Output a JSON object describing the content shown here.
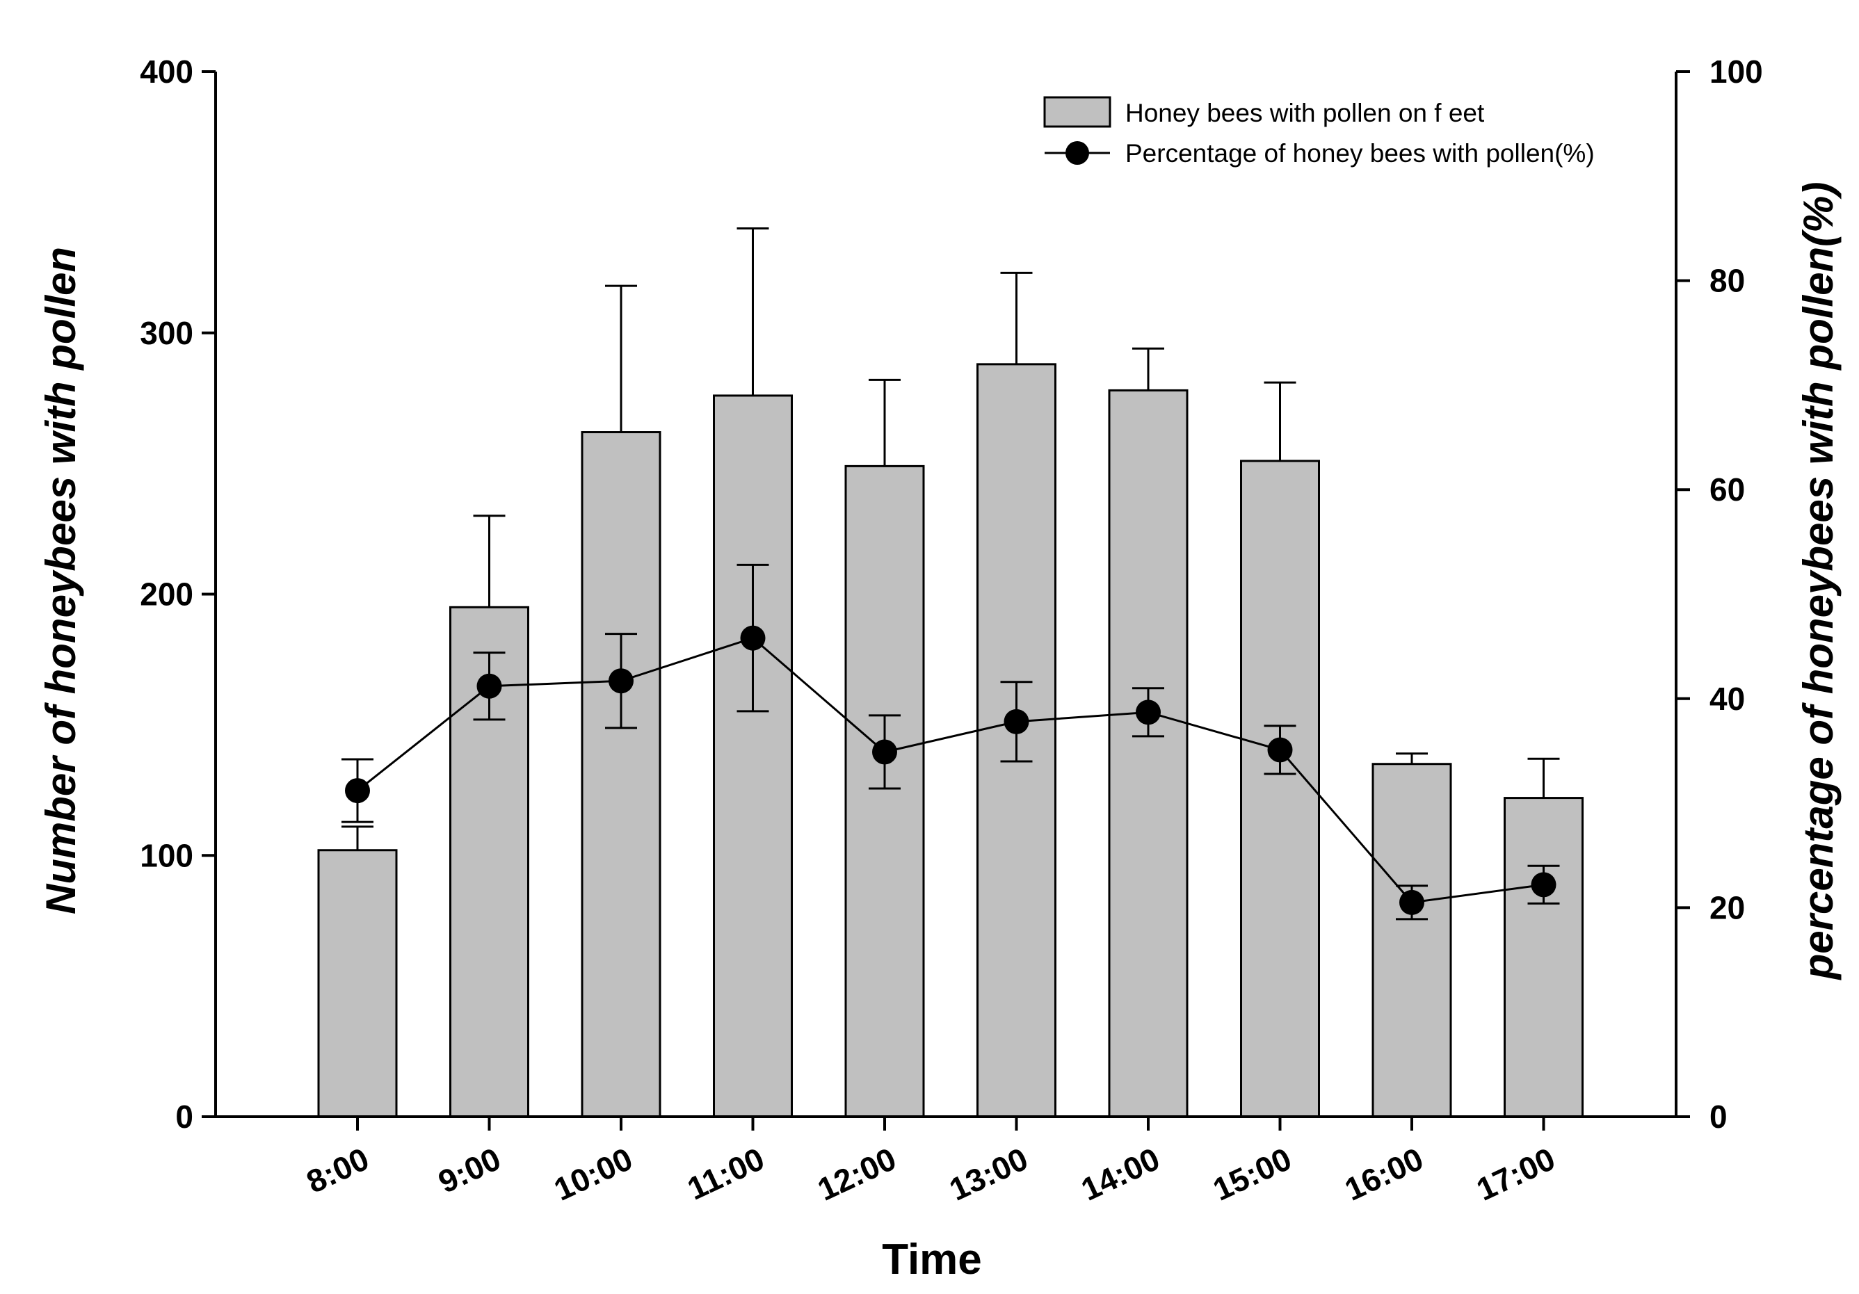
{
  "chart_data": {
    "type": "bar+line",
    "categories": [
      "8:00",
      "9:00",
      "10:00",
      "11:00",
      "12:00",
      "13:00",
      "14:00",
      "15:00",
      "16:00",
      "17:00"
    ],
    "xlabel": "Time",
    "ylabel_left": "Number of honeybees with pollen",
    "ylabel_right": "percentage of honeybees with pollen(%)",
    "ylim_left": [
      0,
      400
    ],
    "yticks_left": [
      0,
      100,
      200,
      300,
      400
    ],
    "ylim_right": [
      0,
      100
    ],
    "yticks_right": [
      0,
      20,
      40,
      60,
      80,
      100
    ],
    "grid": false,
    "legend_position": "top-right",
    "series": [
      {
        "name": "Honey bees with pollen on f eet",
        "type": "bar",
        "axis": "left",
        "color": "#c0c0c0",
        "values": [
          102,
          195,
          262,
          276,
          249,
          288,
          278,
          251,
          135,
          122
        ],
        "errors": [
          9,
          35,
          56,
          64,
          33,
          35,
          16,
          30,
          4,
          15
        ]
      },
      {
        "name": "Percentage of  honey bees with pollen(%)",
        "type": "line",
        "axis": "right",
        "color": "#000000",
        "values": [
          31.2,
          41.2,
          41.7,
          45.8,
          34.9,
          37.8,
          38.7,
          35.1,
          20.5,
          22.2
        ],
        "errors": [
          3,
          3.2,
          4.5,
          7,
          3.5,
          3.8,
          2.3,
          2.3,
          1.6,
          1.8
        ]
      }
    ]
  }
}
